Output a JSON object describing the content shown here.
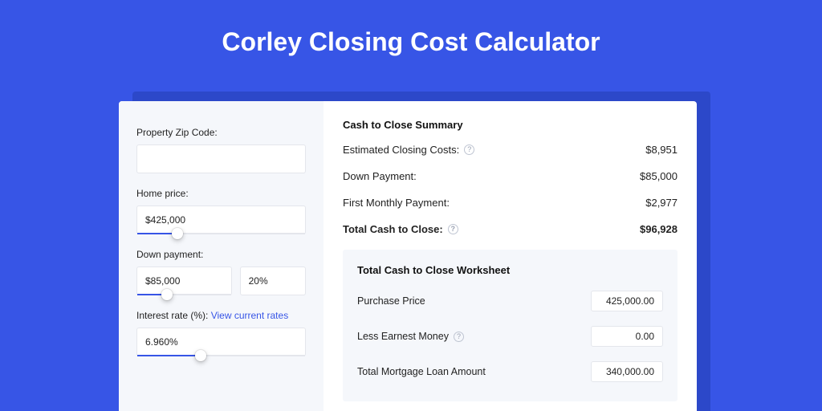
{
  "colors": {
    "page_bg": "#3755e6",
    "shadow_bg": "#2c48c9",
    "card_bg": "#ffffff",
    "left_pane_bg": "#f5f7fb",
    "worksheet_bg": "#f5f7fb",
    "border": "#e4e6ec",
    "accent": "#3755e6",
    "text": "#222222",
    "muted_icon": "#9aa1b2"
  },
  "title": "Corley Closing Cost Calculator",
  "inputs": {
    "zip": {
      "label": "Property Zip Code:",
      "value": ""
    },
    "home_price": {
      "label": "Home price:",
      "value": "$425,000",
      "slider_pct": 24
    },
    "down_payment": {
      "label": "Down payment:",
      "value": "$85,000",
      "pct_value": "20%",
      "slider_pct": 32
    },
    "interest_rate": {
      "label_prefix": "Interest rate (%): ",
      "link_text": "View current rates",
      "value": "6.960%",
      "slider_pct": 38
    }
  },
  "summary": {
    "heading": "Cash to Close Summary",
    "rows": [
      {
        "label": "Estimated Closing Costs:",
        "has_help": true,
        "value": "$8,951"
      },
      {
        "label": "Down Payment:",
        "has_help": false,
        "value": "$85,000"
      },
      {
        "label": "First Monthly Payment:",
        "has_help": false,
        "value": "$2,977"
      }
    ],
    "total": {
      "label": "Total Cash to Close:",
      "has_help": true,
      "value": "$96,928"
    }
  },
  "worksheet": {
    "heading": "Total Cash to Close Worksheet",
    "rows": [
      {
        "label": "Purchase Price",
        "has_help": false,
        "value": "425,000.00"
      },
      {
        "label": "Less Earnest Money",
        "has_help": true,
        "value": "0.00"
      },
      {
        "label": "Total Mortgage Loan Amount",
        "has_help": false,
        "value": "340,000.00"
      }
    ]
  }
}
